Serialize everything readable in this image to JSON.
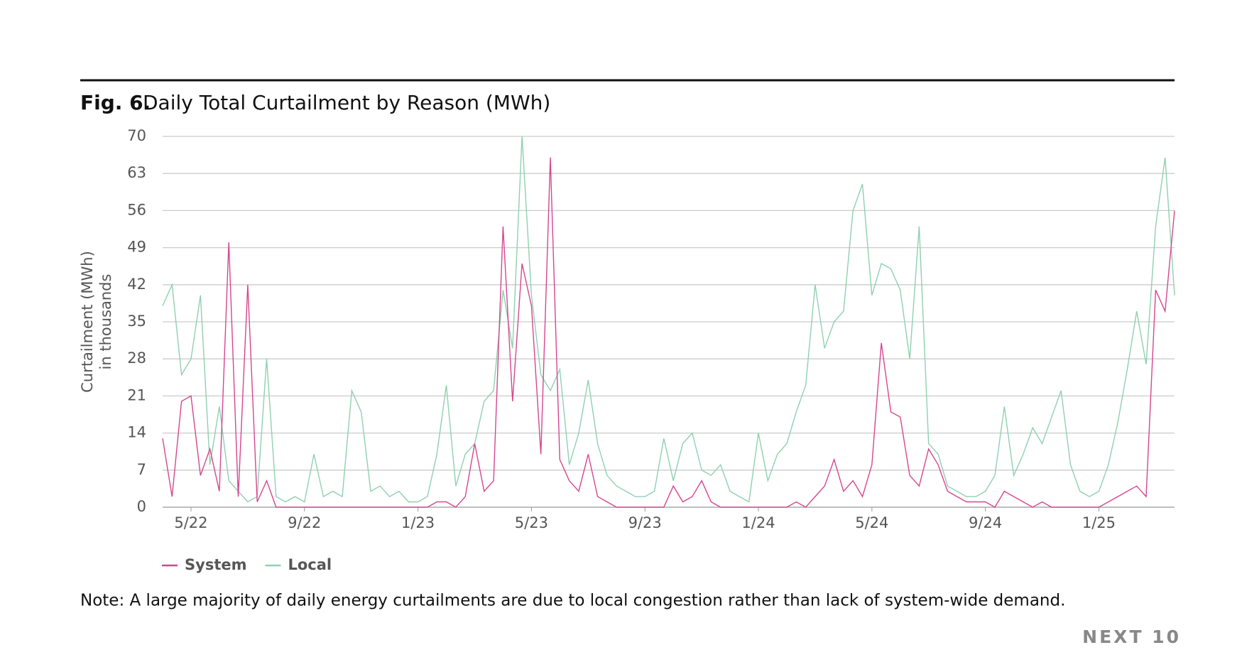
{
  "chart_data": {
    "type": "line",
    "fig_label": "Fig. 6.",
    "title": "Daily Total Curtailment by Reason (MWh)",
    "y_label": [
      "Curtailment (MWh)",
      "in thousands"
    ],
    "note": "Note: A large majority of daily energy curtailments are due to local congestion rather than lack of system-wide demand.",
    "brand": "NEXT 10",
    "categories": [
      null,
      null,
      null,
      "5/22",
      null,
      null,
      null,
      null,
      null,
      null,
      null,
      null,
      null,
      null,
      null,
      "9/22",
      null,
      null,
      null,
      null,
      null,
      null,
      null,
      null,
      null,
      null,
      null,
      "1/23",
      null,
      null,
      null,
      null,
      null,
      null,
      null,
      null,
      null,
      null,
      null,
      "5/23",
      null,
      null,
      null,
      null,
      null,
      null,
      null,
      null,
      null,
      null,
      null,
      "9/23",
      null,
      null,
      null,
      null,
      null,
      null,
      null,
      null,
      null,
      null,
      null,
      "1/24",
      null,
      null,
      null,
      null,
      null,
      null,
      null,
      null,
      null,
      null,
      null,
      "5/24",
      null,
      null,
      null,
      null,
      null,
      null,
      null,
      null,
      null,
      null,
      null,
      "9/24",
      null,
      null,
      null,
      null,
      null,
      null,
      null,
      null,
      null,
      null,
      null,
      "1/25",
      null,
      null,
      null,
      null,
      null,
      null,
      null,
      null
    ],
    "series": [
      {
        "name": "System",
        "color": "#d6468f",
        "values": [
          13,
          2,
          20,
          21,
          6,
          11,
          3,
          50,
          2,
          42,
          1,
          5,
          0,
          0,
          0,
          0,
          0,
          0,
          0,
          0,
          0,
          0,
          0,
          0,
          0,
          0,
          0,
          0,
          0,
          1,
          1,
          0,
          2,
          12,
          3,
          5,
          53,
          20,
          46,
          38,
          10,
          66,
          9,
          5,
          3,
          10,
          2,
          1,
          0,
          0,
          0,
          0,
          0,
          0,
          4,
          1,
          2,
          5,
          1,
          0,
          0,
          0,
          0,
          0,
          0,
          0,
          0,
          1,
          0,
          2,
          4,
          9,
          3,
          5,
          2,
          8,
          31,
          18,
          17,
          6,
          4,
          11,
          8,
          3,
          2,
          1,
          1,
          1,
          0,
          3,
          2,
          1,
          0,
          1,
          0,
          0,
          0,
          0,
          0,
          0,
          1,
          2,
          3,
          4,
          2,
          41,
          37,
          56
        ]
      },
      {
        "name": "Local",
        "color": "#8fd0b0",
        "values": [
          38,
          42,
          25,
          28,
          40,
          8,
          19,
          5,
          3,
          1,
          2,
          28,
          2,
          1,
          2,
          1,
          10,
          2,
          3,
          2,
          22,
          18,
          3,
          4,
          2,
          3,
          1,
          1,
          2,
          10,
          23,
          4,
          10,
          12,
          20,
          22,
          41,
          30,
          70,
          40,
          25,
          22,
          26,
          8,
          14,
          24,
          12,
          6,
          4,
          3,
          2,
          2,
          3,
          13,
          5,
          12,
          14,
          7,
          6,
          8,
          3,
          2,
          1,
          14,
          5,
          10,
          12,
          18,
          23,
          42,
          30,
          35,
          37,
          56,
          61,
          40,
          46,
          45,
          41,
          28,
          53,
          12,
          10,
          4,
          3,
          2,
          2,
          3,
          6,
          19,
          6,
          10,
          15,
          12,
          17,
          22,
          8,
          3,
          2,
          3,
          8,
          16,
          26,
          37,
          27,
          53,
          66,
          40
        ]
      }
    ],
    "ylim": [
      0,
      70
    ],
    "yticks": [
      0,
      7,
      14,
      21,
      28,
      35,
      42,
      49,
      56,
      63,
      70
    ],
    "grid": true
  }
}
